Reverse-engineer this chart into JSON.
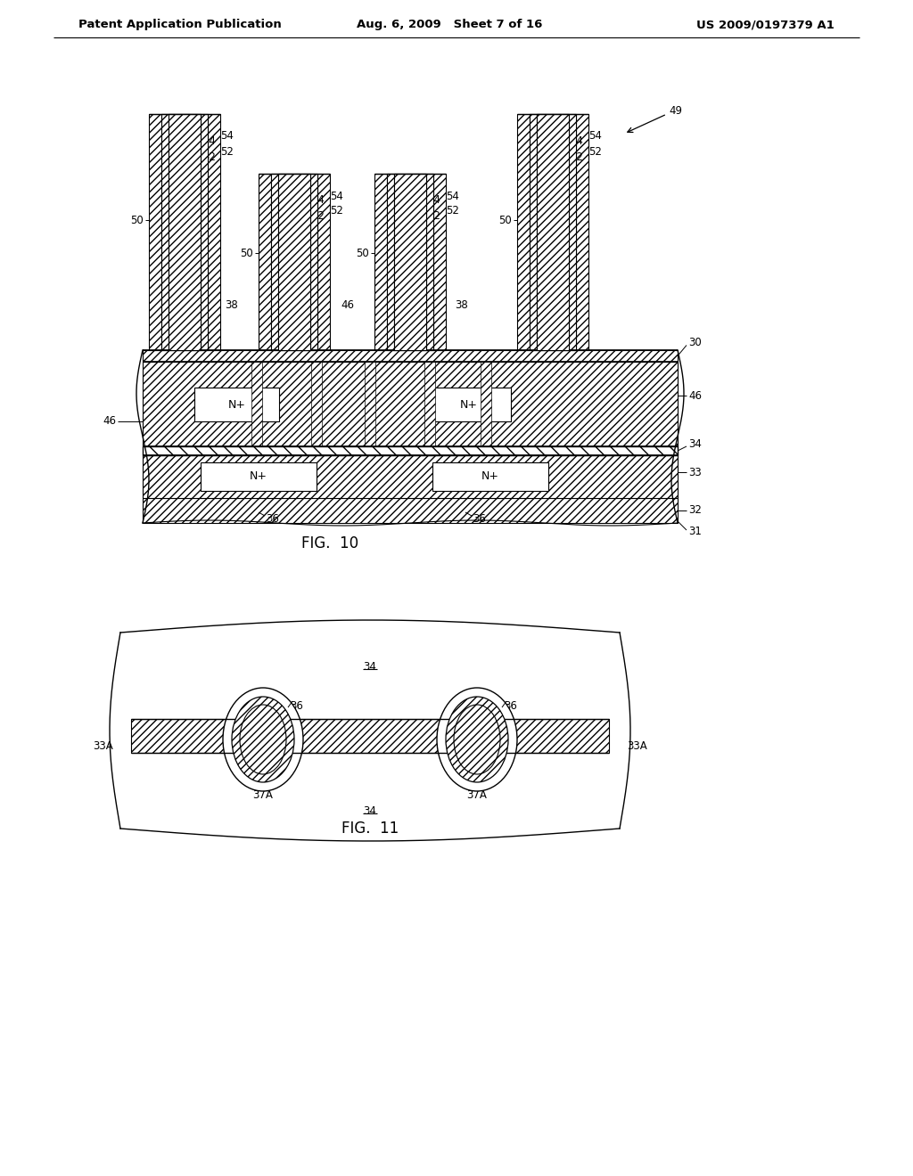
{
  "header_left": "Patent Application Publication",
  "header_mid": "Aug. 6, 2009   Sheet 7 of 16",
  "header_right": "US 2009/0197379 A1",
  "fig10_label": "FIG.  10",
  "fig11_label": "FIG.  11",
  "bg_color": "#ffffff"
}
